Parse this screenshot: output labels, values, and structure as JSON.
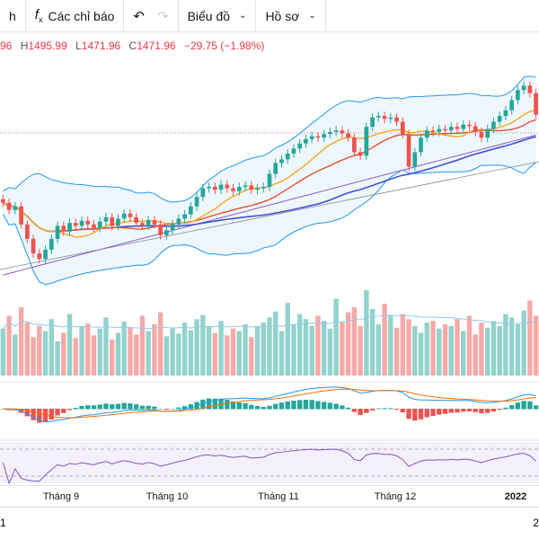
{
  "toolbar": {
    "partial_label": "h",
    "indicators_label": "Các chỉ báo",
    "chart_label": "Biểu đồ",
    "profile_label": "Hồ sơ"
  },
  "legend": {
    "open_partial": "96",
    "h_key": "H",
    "high": "1495.99",
    "l_key": "L",
    "low": "1471.96",
    "c_key": "C",
    "close": "1471.96",
    "change": "−29.75 (−1.98%)"
  },
  "colors": {
    "up": "#26a69a",
    "down": "#ef5350",
    "ma_fast": "#f5a623",
    "ma_mid": "#e0502a",
    "ma_slow": "#3f51d8",
    "ma_long": "#8a5cc7",
    "bb": "#2196f3"
  },
  "chart_data": {
    "type": "candlestick",
    "title": "",
    "xlabel": "",
    "ylabel": "",
    "x_ticks": [
      "Tháng 9",
      "Tháng 10",
      "Tháng 11",
      "Tháng 12",
      "2022"
    ],
    "closes": [
      1350,
      1340,
      1345,
      1320,
      1300,
      1280,
      1272,
      1285,
      1300,
      1318,
      1310,
      1322,
      1318,
      1325,
      1320,
      1315,
      1324,
      1330,
      1318,
      1328,
      1335,
      1330,
      1322,
      1318,
      1326,
      1320,
      1305,
      1312,
      1320,
      1328,
      1334,
      1345,
      1358,
      1370,
      1372,
      1368,
      1375,
      1370,
      1366,
      1372,
      1374,
      1368,
      1370,
      1372,
      1390,
      1405,
      1410,
      1418,
      1425,
      1432,
      1438,
      1442,
      1440,
      1445,
      1448,
      1450,
      1446,
      1440,
      1420,
      1415,
      1455,
      1468,
      1470,
      1466,
      1468,
      1462,
      1445,
      1400,
      1420,
      1440,
      1450,
      1448,
      1452,
      1450,
      1455,
      1452,
      1458,
      1456,
      1448,
      1440,
      1452,
      1462,
      1470,
      1478,
      1492,
      1506,
      1512,
      1501.71,
      1471.96
    ],
    "volumes": [
      55,
      70,
      48,
      80,
      62,
      45,
      58,
      52,
      66,
      40,
      50,
      72,
      44,
      58,
      61,
      47,
      55,
      68,
      42,
      50,
      63,
      57,
      48,
      70,
      52,
      60,
      74,
      46,
      55,
      49,
      62,
      53,
      66,
      71,
      58,
      50,
      64,
      47,
      55,
      52,
      60,
      45,
      58,
      62,
      68,
      75,
      52,
      85,
      60,
      72,
      66,
      58,
      70,
      64,
      55,
      90,
      62,
      74,
      80,
      58,
      100,
      78,
      60,
      84,
      70,
      56,
      72,
      66,
      58,
      50,
      62,
      64,
      55,
      60,
      58,
      66,
      52,
      70,
      48,
      62,
      56,
      64,
      58,
      72,
      68,
      60,
      76,
      88,
      70
    ]
  },
  "bottom": {
    "left_partial": "1",
    "right_partial": "2"
  }
}
